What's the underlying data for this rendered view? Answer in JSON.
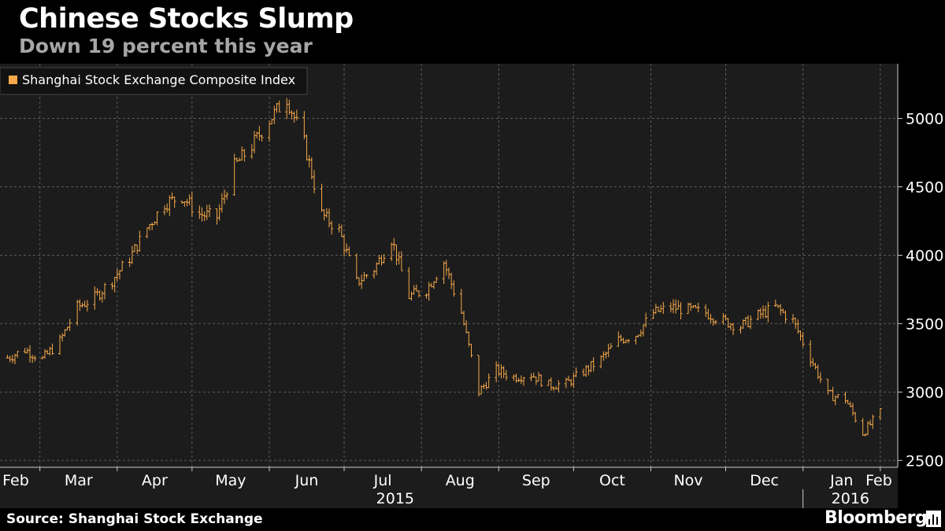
{
  "header": {
    "title": "Chinese Stocks Slump",
    "subtitle": "Down 19 percent this year"
  },
  "footer": {
    "source": "Source: Shanghai Stock Exchange",
    "brand": "Bloomberg"
  },
  "colors": {
    "background": "#000000",
    "plot_background": "#1c1c1c",
    "series": "#f5a84a",
    "grid": "#5a5a5a",
    "text": "#ffffff",
    "subtitle": "#a6a6a6"
  },
  "chart_data": {
    "type": "line",
    "style": "ohlc-bars",
    "title": "Chinese Stocks Slump",
    "subtitle": "Down 19 percent this year",
    "legend": {
      "position": "top-left",
      "entries": [
        "Shanghai Stock Exchange Composite Index"
      ]
    },
    "y_axis": {
      "side": "right",
      "ylim": [
        2450,
        5400
      ],
      "ticks": [
        2500,
        3000,
        3500,
        4000,
        4500,
        5000
      ]
    },
    "x_axis": {
      "month_labels": [
        "Feb",
        "Mar",
        "Apr",
        "May",
        "Jun",
        "Jul",
        "Aug",
        "Sep",
        "Oct",
        "Nov",
        "Dec",
        "Jan",
        "Feb"
      ],
      "year_labels": [
        "2015",
        "2016"
      ]
    },
    "grid": true,
    "series": [
      {
        "name": "Shanghai Stock Exchange Composite Index",
        "dates": [
          "2015-02-16",
          "2015-02-23",
          "2015-03-02",
          "2015-03-09",
          "2015-03-16",
          "2015-03-23",
          "2015-03-30",
          "2015-04-06",
          "2015-04-13",
          "2015-04-20",
          "2015-04-27",
          "2015-05-04",
          "2015-05-11",
          "2015-05-18",
          "2015-05-25",
          "2015-06-01",
          "2015-06-08",
          "2015-06-15",
          "2015-06-22",
          "2015-06-29",
          "2015-07-06",
          "2015-07-13",
          "2015-07-20",
          "2015-07-27",
          "2015-08-03",
          "2015-08-10",
          "2015-08-17",
          "2015-08-24",
          "2015-08-31",
          "2015-09-07",
          "2015-09-14",
          "2015-09-21",
          "2015-09-28",
          "2015-10-12",
          "2015-10-19",
          "2015-10-26",
          "2015-11-02",
          "2015-11-09",
          "2015-11-16",
          "2015-11-23",
          "2015-11-30",
          "2015-12-07",
          "2015-12-14",
          "2015-12-21",
          "2015-12-28",
          "2016-01-04",
          "2016-01-11",
          "2016-01-18",
          "2016-01-25",
          "2016-02-01"
        ],
        "values": [
          3250,
          3310,
          3240,
          3370,
          3620,
          3690,
          3820,
          3980,
          4200,
          4380,
          4430,
          4300,
          4280,
          4650,
          4800,
          4990,
          5150,
          4820,
          4300,
          4180,
          3800,
          3900,
          4120,
          3700,
          3750,
          3950,
          3580,
          3000,
          3160,
          3110,
          3130,
          3050,
          3060,
          3240,
          3380,
          3420,
          3580,
          3620,
          3600,
          3580,
          3520,
          3480,
          3560,
          3620,
          3520,
          3250,
          2980,
          2950,
          2700,
          2850
        ]
      }
    ]
  }
}
